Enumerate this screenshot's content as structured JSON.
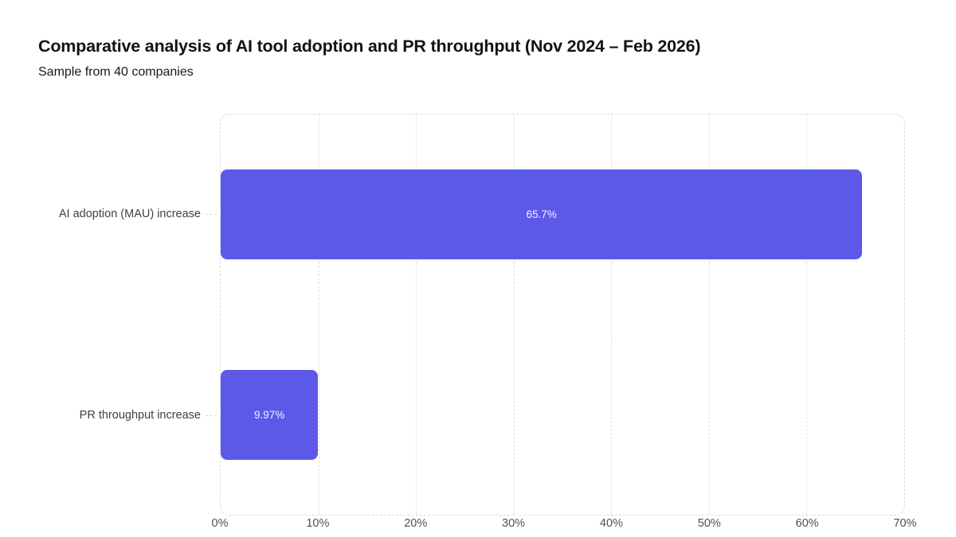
{
  "header": {
    "title": "Comparative analysis of AI tool adoption and PR throughput (Nov 2024 – Feb 2026)",
    "subtitle": "Sample from 40 companies"
  },
  "chart_data": {
    "type": "bar",
    "orientation": "horizontal",
    "title": "Comparative analysis of AI tool adoption and PR throughput (Nov 2024 – Feb 2026)",
    "subtitle": "Sample from 40 companies",
    "categories": [
      "AI adoption (MAU) increase",
      "PR throughput increase"
    ],
    "values": [
      65.7,
      9.97
    ],
    "value_labels": [
      "65.7%",
      "9.97%"
    ],
    "xlabel": "",
    "ylabel": "",
    "xlim": [
      0,
      70
    ],
    "x_tick_values": [
      0,
      10,
      20,
      30,
      40,
      50,
      60,
      70
    ],
    "x_tick_labels": [
      "0%",
      "10%",
      "20%",
      "30%",
      "40%",
      "50%",
      "60%",
      "70%"
    ],
    "grid": "dashed-vertical",
    "legend_position": "none",
    "bar_color": "#5c59e8",
    "value_label_color": "#f4f4ff",
    "frame_style": "dashed-rounded"
  }
}
